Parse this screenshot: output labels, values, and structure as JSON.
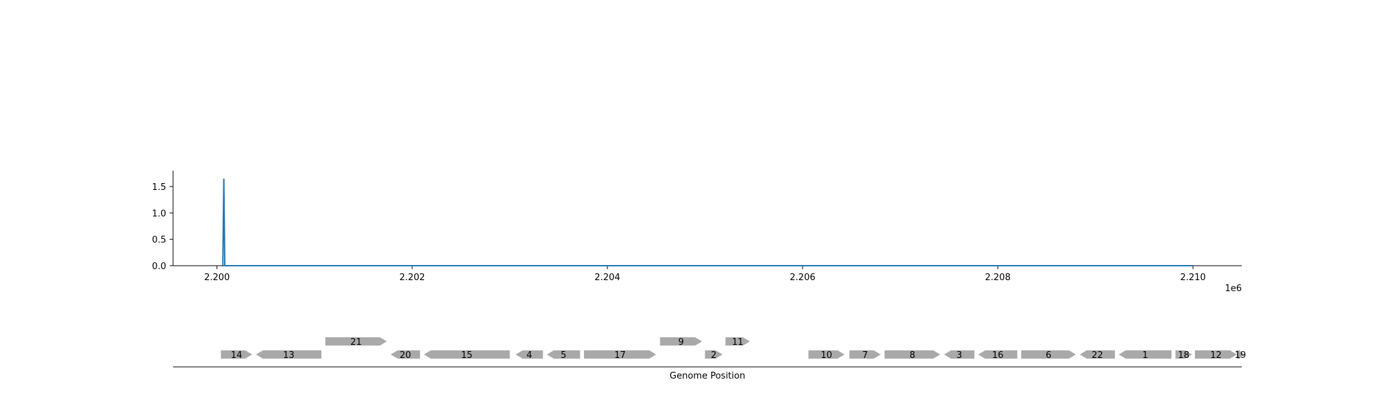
{
  "chart_data": {
    "type": "line",
    "x_offset_label": "1e6",
    "xlim": [
      2.19955,
      2.2105
    ],
    "ylim": [
      0,
      1.8
    ],
    "x_ticks": [
      2.2,
      2.202,
      2.204,
      2.206,
      2.208,
      2.21
    ],
    "x_tick_labels": [
      "2.200",
      "2.202",
      "2.204",
      "2.206",
      "2.208",
      "2.210"
    ],
    "y_ticks": [
      0.0,
      0.5,
      1.0,
      1.5
    ],
    "y_tick_labels": [
      "0.0",
      "0.5",
      "1.0",
      "1.5"
    ],
    "series": [
      {
        "color": "#1f77b4",
        "x": [
          2.20005,
          2.20006,
          2.20007,
          2.20008,
          2.21
        ],
        "y": [
          0,
          0,
          1.65,
          0,
          0
        ]
      }
    ],
    "gene_track": {
      "xlabel": "Genome Position",
      "color": "#a9a9a9",
      "genes": [
        {
          "label": "14",
          "start": 2.20004,
          "end": 2.20036,
          "strand": "+",
          "row": 0
        },
        {
          "label": "13",
          "start": 2.2004,
          "end": 2.20107,
          "strand": "-",
          "row": 0
        },
        {
          "label": "21",
          "start": 2.20111,
          "end": 2.20174,
          "strand": "+",
          "row": 1
        },
        {
          "label": "20",
          "start": 2.20178,
          "end": 2.20208,
          "strand": "-",
          "row": 0
        },
        {
          "label": "15",
          "start": 2.20212,
          "end": 2.203,
          "strand": "-",
          "row": 0
        },
        {
          "label": "4",
          "start": 2.20306,
          "end": 2.20334,
          "strand": "-",
          "row": 0
        },
        {
          "label": "5",
          "start": 2.20338,
          "end": 2.20372,
          "strand": "-",
          "row": 0
        },
        {
          "label": "17",
          "start": 2.20376,
          "end": 2.2045,
          "strand": "+",
          "row": 0
        },
        {
          "label": "9",
          "start": 2.20454,
          "end": 2.20497,
          "strand": "+",
          "row": 1
        },
        {
          "label": "2",
          "start": 2.205,
          "end": 2.20518,
          "strand": "+",
          "row": 0
        },
        {
          "label": "11",
          "start": 2.20521,
          "end": 2.20546,
          "strand": "+",
          "row": 1
        },
        {
          "label": "10",
          "start": 2.20606,
          "end": 2.20643,
          "strand": "+",
          "row": 0
        },
        {
          "label": "7",
          "start": 2.20648,
          "end": 2.2068,
          "strand": "+",
          "row": 0
        },
        {
          "label": "8",
          "start": 2.20684,
          "end": 2.20741,
          "strand": "+",
          "row": 0
        },
        {
          "label": "3",
          "start": 2.20745,
          "end": 2.20776,
          "strand": "-",
          "row": 0
        },
        {
          "label": "16",
          "start": 2.2078,
          "end": 2.2082,
          "strand": "-",
          "row": 0
        },
        {
          "label": "6",
          "start": 2.20824,
          "end": 2.2088,
          "strand": "+",
          "row": 0
        },
        {
          "label": "22",
          "start": 2.20884,
          "end": 2.2092,
          "strand": "-",
          "row": 0
        },
        {
          "label": "1",
          "start": 2.20924,
          "end": 2.20978,
          "strand": "-",
          "row": 0
        },
        {
          "label": "18",
          "start": 2.20982,
          "end": 2.20999,
          "strand": "+",
          "row": 0
        },
        {
          "label": "12",
          "start": 2.21002,
          "end": 2.21045,
          "strand": "+",
          "row": 0
        },
        {
          "label": "19",
          "start": 2.21045,
          "end": 2.21052,
          "strand": "+",
          "row": 0
        }
      ]
    }
  }
}
